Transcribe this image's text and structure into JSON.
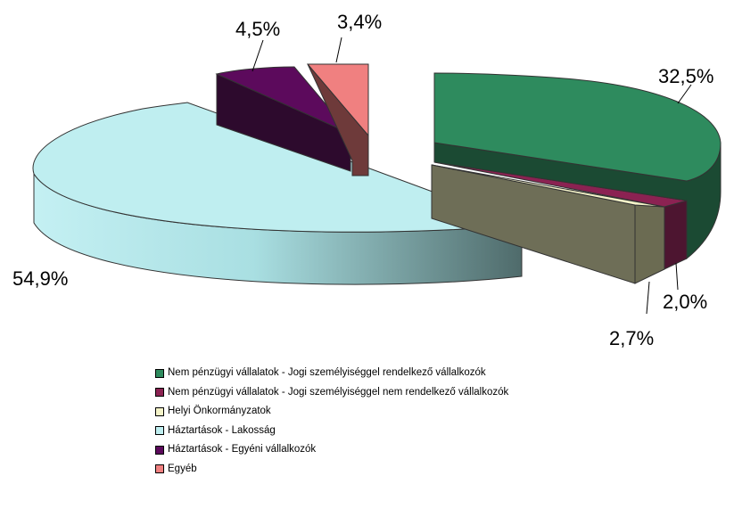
{
  "chart_data": {
    "type": "pie",
    "style": "3d-exploded",
    "slices": [
      {
        "label": "Nem pénzügyi vállalatok - Jogi személyiséggel rendelkező vállalkozók",
        "value": 32.5,
        "label_text": "32,5%",
        "color": "#2e8b5e"
      },
      {
        "label": "Nem pénzügyi vállalatok - Jogi személyiséggel nem rendelkező vállalkozók",
        "value": 2.0,
        "label_text": "2,0%",
        "color": "#8b2252"
      },
      {
        "label": "Helyi Önkormányzatok",
        "value": 2.7,
        "label_text": "2,7%",
        "color": "#f4f3c8"
      },
      {
        "label": "Háztartások - Lakosság",
        "value": 54.9,
        "label_text": "54,9%",
        "color": "#bfeef0"
      },
      {
        "label": "Háztartások - Egyéni vállalkozók",
        "value": 4.5,
        "label_text": "4,5%",
        "color": "#5c0a5c"
      },
      {
        "label": "Egyéb",
        "value": 3.4,
        "label_text": "3,4%",
        "color": "#f08080"
      }
    ],
    "legend_position": "bottom"
  },
  "legend": [
    {
      "label": "Nem pénzügyi vállalatok - Jogi személyiséggel rendelkező vállalkozók",
      "color": "#2e8b5e"
    },
    {
      "label": "Nem pénzügyi vállalatok - Jogi személyiséggel nem rendelkező vállalkozók",
      "color": "#8b2252"
    },
    {
      "label": "Helyi Önkormányzatok",
      "color": "#f4f3c8"
    },
    {
      "label": "Háztartások - Lakosság",
      "color": "#bfeef0"
    },
    {
      "label": "Háztartások - Egyéni vállalkozók",
      "color": "#5c0a5c"
    },
    {
      "label": "Egyéb",
      "color": "#f08080"
    }
  ]
}
